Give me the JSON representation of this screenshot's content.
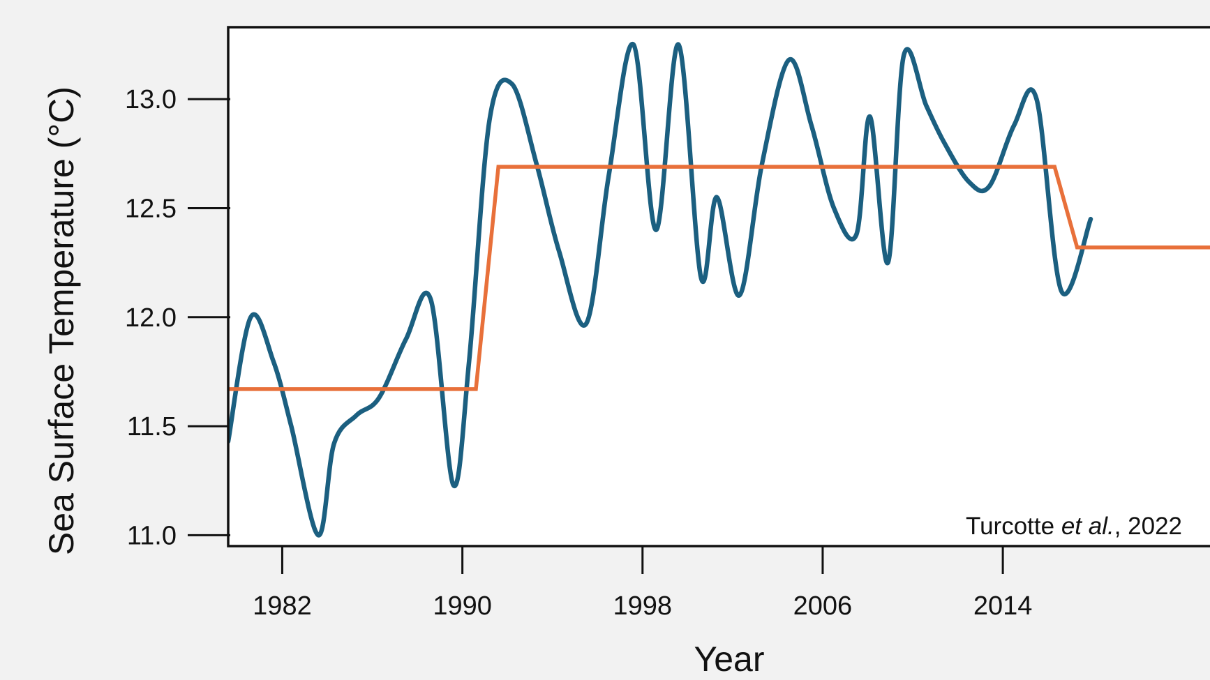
{
  "chart_data": {
    "type": "line",
    "xlabel": "Year",
    "ylabel": "Sea Surface Temperature (°C)",
    "credit": {
      "authors": "Turcotte ",
      "etal": "et al.",
      "year": ", 2022"
    },
    "x_ticks": [
      1982,
      1990,
      1998,
      2006,
      2014
    ],
    "y_ticks": [
      "11.0",
      "11.5",
      "12.0",
      "12.5",
      "13.0"
    ],
    "xlim": [
      1979.6,
      2023.2
    ],
    "ylim": [
      10.95,
      13.33
    ],
    "grid": false,
    "legend": "none",
    "series": [
      {
        "color": "#1b5f80",
        "x": [
          1979.6,
          1980.6,
          1981.6,
          1982.4,
          1983.6,
          1984.3,
          1985.3,
          1986.3,
          1987.5,
          1988.6,
          1989.6,
          1990.3,
          1991.2,
          1992.2,
          1993.3,
          1994.3,
          1995.5,
          1996.5,
          1997.6,
          1998.6,
          1999.6,
          2000.6,
          2001.3,
          2002.3,
          2003.3,
          2004.5,
          2005.5,
          2006.5,
          2007.5,
          2008.1,
          2008.9,
          2009.6,
          2010.6,
          2011.4,
          2012.5,
          2013.4,
          2014.5,
          2015.5,
          2016.6,
          2017.9
        ],
        "y": [
          11.43,
          12.0,
          11.8,
          11.5,
          11.0,
          11.42,
          11.55,
          11.63,
          11.9,
          12.08,
          11.23,
          11.8,
          12.9,
          13.07,
          12.7,
          12.3,
          11.97,
          12.65,
          13.25,
          12.4,
          13.25,
          12.18,
          12.55,
          12.1,
          12.7,
          13.18,
          12.88,
          12.5,
          12.38,
          12.92,
          12.25,
          13.2,
          12.97,
          12.8,
          12.62,
          12.6,
          12.88,
          13.0,
          12.12,
          12.45
        ]
      },
      {
        "color": "#e8703a",
        "x": [
          1979.6,
          1990.6,
          1991.6,
          2016.3,
          2017.3,
          2023.2
        ],
        "y": [
          11.67,
          11.67,
          12.69,
          12.69,
          12.32,
          12.32
        ]
      }
    ]
  }
}
